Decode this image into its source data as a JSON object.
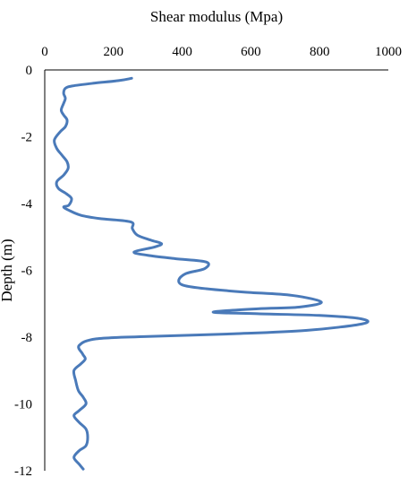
{
  "chart_data": {
    "type": "line",
    "xlabel": "Shear modulus (Mpa)",
    "ylabel": "Depth (m)",
    "xlim": [
      0,
      1000
    ],
    "ylim": [
      -12,
      0
    ],
    "x_ticks": [
      "0",
      "200",
      "400",
      "600",
      "800",
      "1000"
    ],
    "y_ticks": [
      "0",
      "-2",
      "-4",
      "-6",
      "-8",
      "-10",
      "-12"
    ],
    "x_tick_values": [
      0,
      200,
      400,
      600,
      800,
      1000
    ],
    "y_tick_values": [
      0,
      -2,
      -4,
      -6,
      -8,
      -10,
      -12
    ],
    "x_axis_position": "top",
    "grid": false,
    "legend": "none",
    "series": [
      {
        "color": "#4a7ab9",
        "points": [
          [
            253,
            -0.25
          ],
          [
            215,
            -0.32
          ],
          [
            140,
            -0.4
          ],
          [
            80,
            -0.48
          ],
          [
            60,
            -0.55
          ],
          [
            55,
            -0.7
          ],
          [
            60,
            -0.85
          ],
          [
            55,
            -1.0
          ],
          [
            48,
            -1.2
          ],
          [
            55,
            -1.35
          ],
          [
            65,
            -1.5
          ],
          [
            60,
            -1.7
          ],
          [
            45,
            -1.85
          ],
          [
            28,
            -2.1
          ],
          [
            35,
            -2.35
          ],
          [
            50,
            -2.55
          ],
          [
            65,
            -2.75
          ],
          [
            68,
            -2.95
          ],
          [
            55,
            -3.15
          ],
          [
            35,
            -3.35
          ],
          [
            40,
            -3.55
          ],
          [
            62,
            -3.7
          ],
          [
            78,
            -3.85
          ],
          [
            70,
            -4.05
          ],
          [
            55,
            -4.1
          ],
          [
            70,
            -4.2
          ],
          [
            105,
            -4.35
          ],
          [
            160,
            -4.45
          ],
          [
            250,
            -4.55
          ],
          [
            255,
            -4.75
          ],
          [
            270,
            -4.95
          ],
          [
            310,
            -5.1
          ],
          [
            340,
            -5.2
          ],
          [
            320,
            -5.3
          ],
          [
            260,
            -5.45
          ],
          [
            300,
            -5.55
          ],
          [
            380,
            -5.65
          ],
          [
            470,
            -5.75
          ],
          [
            465,
            -5.95
          ],
          [
            410,
            -6.1
          ],
          [
            390,
            -6.3
          ],
          [
            405,
            -6.45
          ],
          [
            470,
            -6.55
          ],
          [
            580,
            -6.65
          ],
          [
            720,
            -6.75
          ],
          [
            805,
            -6.95
          ],
          [
            740,
            -7.1
          ],
          [
            620,
            -7.15
          ],
          [
            490,
            -7.25
          ],
          [
            620,
            -7.3
          ],
          [
            800,
            -7.35
          ],
          [
            920,
            -7.45
          ],
          [
            925,
            -7.6
          ],
          [
            760,
            -7.8
          ],
          [
            550,
            -7.9
          ],
          [
            300,
            -7.98
          ],
          [
            150,
            -8.05
          ],
          [
            100,
            -8.25
          ],
          [
            110,
            -8.5
          ],
          [
            118,
            -8.65
          ],
          [
            105,
            -8.8
          ],
          [
            85,
            -9.0
          ],
          [
            90,
            -9.3
          ],
          [
            98,
            -9.6
          ],
          [
            112,
            -9.8
          ],
          [
            120,
            -10.0
          ],
          [
            100,
            -10.2
          ],
          [
            85,
            -10.35
          ],
          [
            100,
            -10.55
          ],
          [
            120,
            -10.75
          ],
          [
            125,
            -11.0
          ],
          [
            120,
            -11.25
          ],
          [
            100,
            -11.4
          ],
          [
            85,
            -11.6
          ],
          [
            100,
            -11.8
          ],
          [
            112,
            -11.95
          ]
        ]
      }
    ]
  }
}
